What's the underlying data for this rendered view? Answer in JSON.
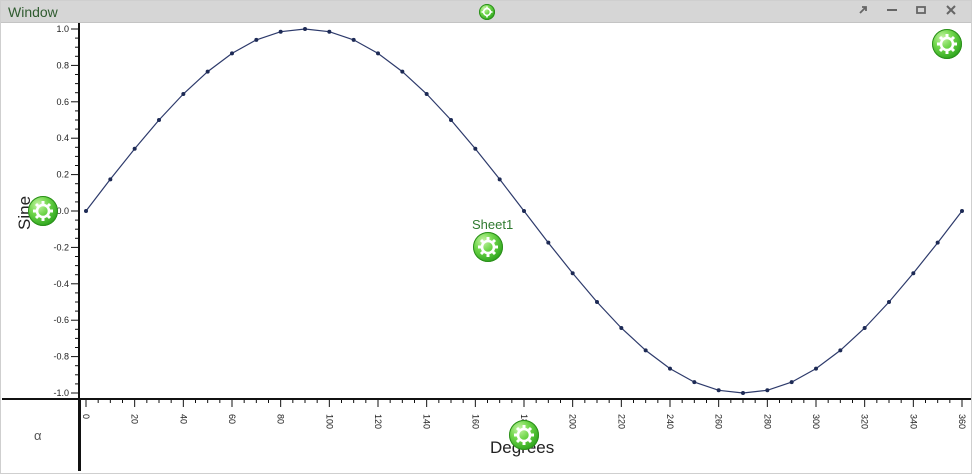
{
  "window": {
    "title": "Window",
    "controls": [
      "expand-icon",
      "minimize-icon",
      "maximize-icon",
      "close-icon"
    ]
  },
  "labels": {
    "sheet": "Sheet1",
    "alpha": "α",
    "xlabel": "Degrees",
    "ylabel": "Sine"
  },
  "colors": {
    "line": "#2d3a6b",
    "marker": "#1d2a55",
    "gear": "#3cb82a",
    "title_text": "#2f5b2f"
  },
  "chart_data": {
    "type": "line",
    "title": "",
    "xlabel": "Degrees",
    "ylabel": "Sine",
    "xlim": [
      0,
      360
    ],
    "ylim": [
      -1.0,
      1.0
    ],
    "x_ticks": [
      "0",
      "20",
      "40",
      "60",
      "80",
      "100",
      "120",
      "140",
      "160",
      "180",
      "200",
      "220",
      "240",
      "260",
      "280",
      "300",
      "320",
      "340",
      "360"
    ],
    "y_ticks": [
      "1.0",
      "0.8",
      "0.6",
      "0.4",
      "0.2",
      "0.0",
      "-0.2",
      "-0.4",
      "-0.6",
      "-0.8",
      "-1.0"
    ],
    "grid": false,
    "series": [
      {
        "name": "",
        "x": [
          0,
          10,
          20,
          30,
          40,
          50,
          60,
          70,
          80,
          90,
          100,
          110,
          120,
          130,
          140,
          150,
          160,
          170,
          180,
          190,
          200,
          210,
          220,
          230,
          240,
          250,
          260,
          270,
          280,
          290,
          300,
          310,
          320,
          330,
          340,
          350,
          360
        ],
        "values": [
          0.0,
          0.174,
          0.342,
          0.5,
          0.643,
          0.766,
          0.866,
          0.94,
          0.985,
          1.0,
          0.985,
          0.94,
          0.866,
          0.766,
          0.643,
          0.5,
          0.342,
          0.174,
          0.0,
          -0.174,
          -0.342,
          -0.5,
          -0.643,
          -0.766,
          -0.866,
          -0.94,
          -0.985,
          -1.0,
          -0.985,
          -0.94,
          -0.866,
          -0.766,
          -0.643,
          -0.5,
          -0.342,
          -0.174,
          0.0
        ]
      }
    ]
  }
}
